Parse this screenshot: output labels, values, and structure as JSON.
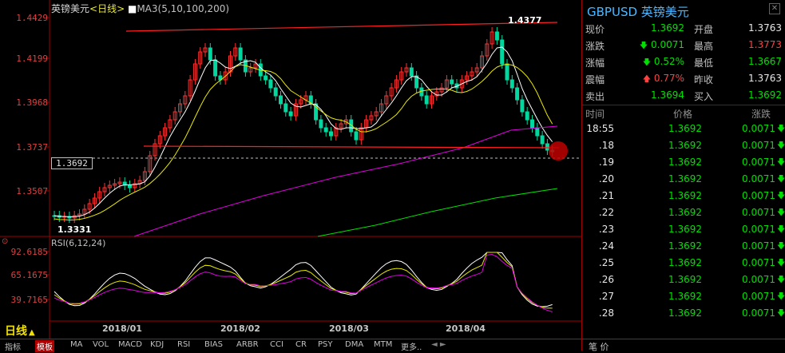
{
  "header": {
    "name": "英镑美元",
    "period": "<日线>",
    "ma_label": "MA3(5,10,100,200)"
  },
  "price_axis": [
    "1.4429",
    "1.4199",
    "1.3968",
    "1.3737",
    "1.3507"
  ],
  "rsi_axis": [
    "92.6185",
    "65.1675",
    "39.7165"
  ],
  "rsi_label": "RSI(6,12,24)",
  "current_price_tag": "1.3692",
  "high_label": "1.4377",
  "low_label": "1.3331",
  "x_labels": [
    "2018/01",
    "2018/02",
    "2018/03",
    "2018/04"
  ],
  "period_button": "日线",
  "bottom_tabs": [
    "指标",
    "模板",
    "MA",
    "VOL",
    "MACD",
    "KDJ",
    "RSI",
    "BIAS",
    "ARBR",
    "CCI",
    "CR",
    "PSY",
    "DMA",
    "MTM",
    "更多.."
  ],
  "quote": {
    "title": "GBPUSD 英镑美元",
    "rows": [
      {
        "l1": "现价",
        "v1": "1.3692",
        "c1": "green",
        "l2": "开盘",
        "v2": "1.3763",
        "c2": "white"
      },
      {
        "l1": "涨跌",
        "v1": "0.0071",
        "c1": "green",
        "arrow1": "down",
        "l2": "最高",
        "v2": "1.3773",
        "c2": "red"
      },
      {
        "l1": "涨幅",
        "v1": "0.52%",
        "c1": "green",
        "arrow1": "down",
        "l2": "最低",
        "v2": "1.3667",
        "c2": "green"
      },
      {
        "l1": "震幅",
        "v1": "0.77%",
        "c1": "red",
        "arrow1": "up",
        "l2": "昨收",
        "v2": "1.3763",
        "c2": "white"
      },
      {
        "l1": "卖出",
        "v1": "1.3694",
        "c1": "green",
        "l2": "买入",
        "v2": "1.3692",
        "c2": "green"
      }
    ]
  },
  "trades_header": {
    "time": "时间",
    "price": "价格",
    "change": "涨跌"
  },
  "trades": [
    {
      "t": "18:55",
      "p": "1.3692",
      "c": "0.0071"
    },
    {
      "t": ".18",
      "p": "1.3692",
      "c": "0.0071"
    },
    {
      "t": ".19",
      "p": "1.3692",
      "c": "0.0071"
    },
    {
      "t": ".20",
      "p": "1.3692",
      "c": "0.0071"
    },
    {
      "t": ".21",
      "p": "1.3692",
      "c": "0.0071"
    },
    {
      "t": ".22",
      "p": "1.3692",
      "c": "0.0071"
    },
    {
      "t": ".23",
      "p": "1.3692",
      "c": "0.0071"
    },
    {
      "t": ".24",
      "p": "1.3692",
      "c": "0.0071"
    },
    {
      "t": ".25",
      "p": "1.3692",
      "c": "0.0071"
    },
    {
      "t": ".26",
      "p": "1.3692",
      "c": "0.0071"
    },
    {
      "t": ".27",
      "p": "1.3692",
      "c": "0.0071"
    },
    {
      "t": ".28",
      "p": "1.3692",
      "c": "0.0071"
    }
  ],
  "right_bottom": "笔  价",
  "colors": {
    "up": "#ff3030",
    "down": "#00d8a0",
    "ma5": "#ffffff",
    "ma10": "#e8e800",
    "ma100": "#e000e0",
    "ma200": "#00e000",
    "trend": "#ff2020"
  }
}
